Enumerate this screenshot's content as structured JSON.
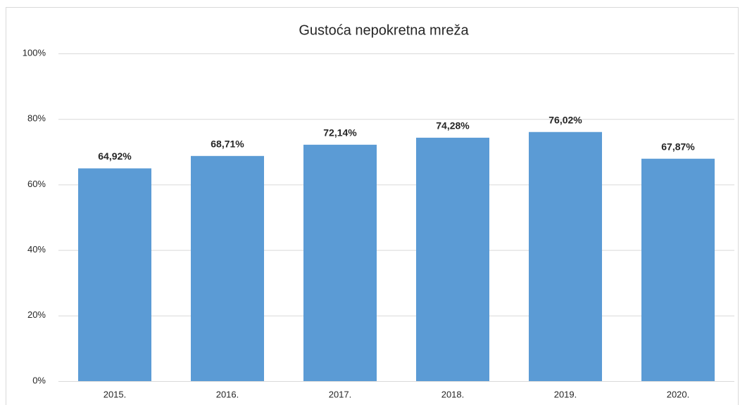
{
  "chart_data": {
    "type": "bar",
    "title": "Gustoća nepokretna mreža",
    "categories": [
      "2015.",
      "2016.",
      "2017.",
      "2018.",
      "2019.",
      "2020."
    ],
    "values": [
      64.92,
      68.71,
      72.14,
      74.28,
      76.02,
      67.87
    ],
    "value_labels": [
      "64,92%",
      "68,71%",
      "72,14%",
      "74,28%",
      "76,02%",
      "67,87%"
    ],
    "color": "#5b9bd5",
    "ylim": [
      0,
      100
    ],
    "yticks": [
      {
        "value": 0,
        "label": "0%"
      },
      {
        "value": 20,
        "label": "20%"
      },
      {
        "value": 40,
        "label": "40%"
      },
      {
        "value": 60,
        "label": "60%"
      },
      {
        "value": 80,
        "label": "80%"
      },
      {
        "value": 100,
        "label": "100%"
      }
    ],
    "grid": true
  }
}
